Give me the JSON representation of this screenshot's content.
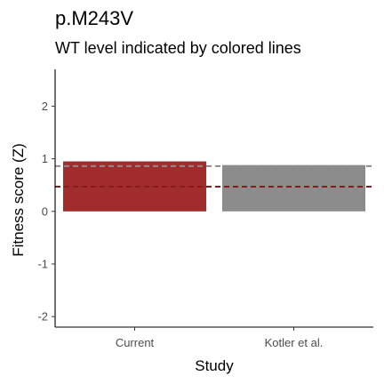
{
  "chart_data": {
    "type": "bar",
    "title": "p.M243V",
    "subtitle": "WT level indicated by colored lines",
    "xlabel": "Study",
    "ylabel": "Fitness score (Z)",
    "categories": [
      "Current",
      "Kotler et al."
    ],
    "values": [
      0.95,
      0.88
    ],
    "bar_colors": [
      "#a02c2c",
      "#8c8c8c"
    ],
    "reference_lines": [
      {
        "category": "Current",
        "value": 0.47,
        "color": "#8b1a1a",
        "style": "dashed"
      },
      {
        "category": "Kotler et al.",
        "value": 0.86,
        "color": "#8c8c8c",
        "style": "dashed"
      }
    ],
    "ylim": [
      -2.2,
      2.7
    ],
    "yticks": [
      -2,
      -1,
      0,
      1,
      2
    ],
    "ytick_labels": [
      "-2",
      "-1",
      "0",
      "1",
      "2"
    ],
    "grid": false,
    "legend": "none"
  }
}
